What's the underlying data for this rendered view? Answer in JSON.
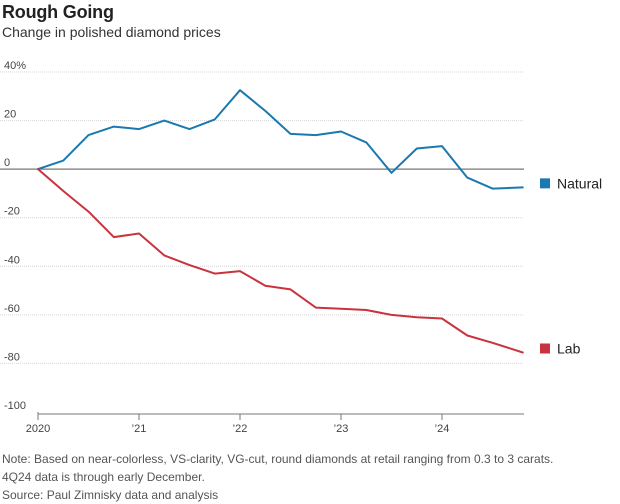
{
  "chart_data": {
    "type": "line",
    "title": "Rough Going",
    "subtitle": "Change in polished diamond prices",
    "ylabel": "",
    "xlabel": "",
    "ylim": [
      -100,
      40
    ],
    "xlim": [
      2020.0,
      2024.9
    ],
    "y_ticks": [
      40,
      20,
      0,
      -20,
      -40,
      -60,
      -80,
      -100
    ],
    "y_tick_labels": [
      "40%",
      "20",
      "0",
      "-20",
      "-40",
      "-60",
      "-80",
      "-100"
    ],
    "x_ticks": [
      2020,
      2021,
      2022,
      2023,
      2024
    ],
    "x_tick_labels": [
      "2020",
      "’21",
      "’22",
      "’23",
      "’24"
    ],
    "grid": true,
    "series": [
      {
        "name": "Natural",
        "color": "#1a79b0",
        "x": [
          2020.0,
          2020.25,
          2020.5,
          2020.75,
          2021.0,
          2021.25,
          2021.5,
          2021.75,
          2022.0,
          2022.25,
          2022.5,
          2022.75,
          2023.0,
          2023.25,
          2023.5,
          2023.75,
          2024.0,
          2024.25,
          2024.5,
          2024.8
        ],
        "values": [
          0,
          3.5,
          14,
          17.5,
          16.5,
          20,
          16.5,
          20.5,
          32.5,
          24,
          14.5,
          14,
          15.5,
          11,
          -1.5,
          8.5,
          9.5,
          -3.5,
          -8,
          -7.5
        ]
      },
      {
        "name": "Lab",
        "color": "#c9333e",
        "x": [
          2020.0,
          2020.25,
          2020.5,
          2020.75,
          2021.0,
          2021.25,
          2021.5,
          2021.75,
          2022.0,
          2022.25,
          2022.5,
          2022.75,
          2023.0,
          2023.25,
          2023.5,
          2023.75,
          2024.0,
          2024.25,
          2024.5,
          2024.8
        ],
        "values": [
          0,
          -9,
          -17.5,
          -28,
          -26.5,
          -35.5,
          -39.5,
          -43,
          -42,
          -48,
          -49.5,
          -57,
          -57.5,
          -58,
          -60,
          -61,
          -61.5,
          -68.5,
          -71.5,
          -75.5
        ]
      }
    ]
  },
  "notes": {
    "line1": "Note: Based on near-colorless, VS-clarity, VG-cut, round diamonds at retail ranging from 0.3 to 3 carats.",
    "line2": "4Q24 data is through early December.",
    "source": "Source: Paul Zimnisky data and analysis"
  }
}
